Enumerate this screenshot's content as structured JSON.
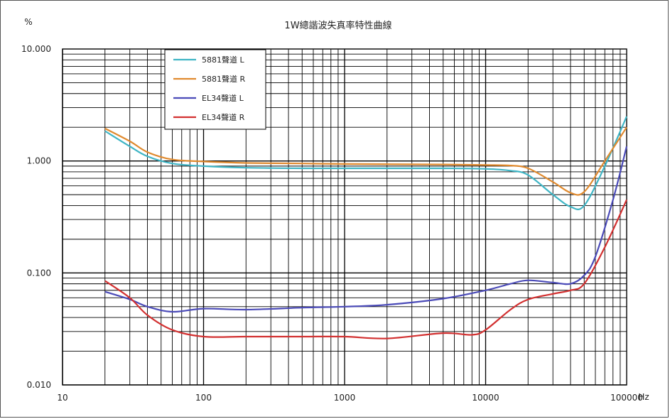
{
  "chart_data": {
    "type": "line",
    "title": "1W總諧波失真率特性曲線",
    "ylabel": "%",
    "xlabel": "Hz",
    "x_scale": "log",
    "y_scale": "log",
    "xlim": [
      10,
      100000
    ],
    "ylim": [
      0.01,
      10
    ],
    "x_tick_labels": [
      "10",
      "100",
      "1000",
      "10000",
      "100000"
    ],
    "y_tick_labels": [
      "10.000",
      "1.000",
      "0.100",
      "0.010"
    ],
    "grid": true,
    "legend_position": "top-left",
    "series": [
      {
        "name": "5881聲道 L",
        "color": "#3fb5c5",
        "x": [
          20,
          30,
          40,
          60,
          100,
          200,
          500,
          1000,
          5000,
          10000,
          15000,
          20000,
          30000,
          40000,
          50000,
          70000,
          100000
        ],
        "y": [
          1.85,
          1.35,
          1.1,
          0.95,
          0.9,
          0.87,
          0.86,
          0.86,
          0.86,
          0.85,
          0.82,
          0.75,
          0.5,
          0.39,
          0.4,
          0.9,
          2.5
        ]
      },
      {
        "name": "5881聲道 R",
        "color": "#e08a2e",
        "x": [
          20,
          30,
          40,
          60,
          100,
          200,
          500,
          1000,
          5000,
          10000,
          15000,
          20000,
          30000,
          40000,
          50000,
          70000,
          100000
        ],
        "y": [
          1.95,
          1.5,
          1.2,
          1.03,
          0.99,
          0.96,
          0.95,
          0.94,
          0.93,
          0.92,
          0.91,
          0.86,
          0.65,
          0.52,
          0.53,
          1.0,
          2.0
        ]
      },
      {
        "name": "EL34聲道 L",
        "color": "#4b4bb8",
        "x": [
          20,
          30,
          40,
          60,
          100,
          200,
          500,
          1000,
          2000,
          5000,
          10000,
          15000,
          20000,
          30000,
          40000,
          50000,
          60000,
          80000,
          100000
        ],
        "y": [
          0.068,
          0.058,
          0.05,
          0.045,
          0.048,
          0.047,
          0.049,
          0.05,
          0.052,
          0.059,
          0.07,
          0.08,
          0.086,
          0.082,
          0.08,
          0.095,
          0.14,
          0.45,
          1.35
        ]
      },
      {
        "name": "EL34聲道 R",
        "color": "#d23030",
        "x": [
          20,
          30,
          40,
          60,
          100,
          200,
          500,
          1000,
          2000,
          5000,
          8000,
          10000,
          15000,
          20000,
          30000,
          40000,
          50000,
          70000,
          100000
        ],
        "y": [
          0.085,
          0.06,
          0.042,
          0.031,
          0.027,
          0.027,
          0.027,
          0.027,
          0.026,
          0.029,
          0.028,
          0.031,
          0.047,
          0.058,
          0.065,
          0.07,
          0.08,
          0.17,
          0.45
        ]
      }
    ]
  }
}
